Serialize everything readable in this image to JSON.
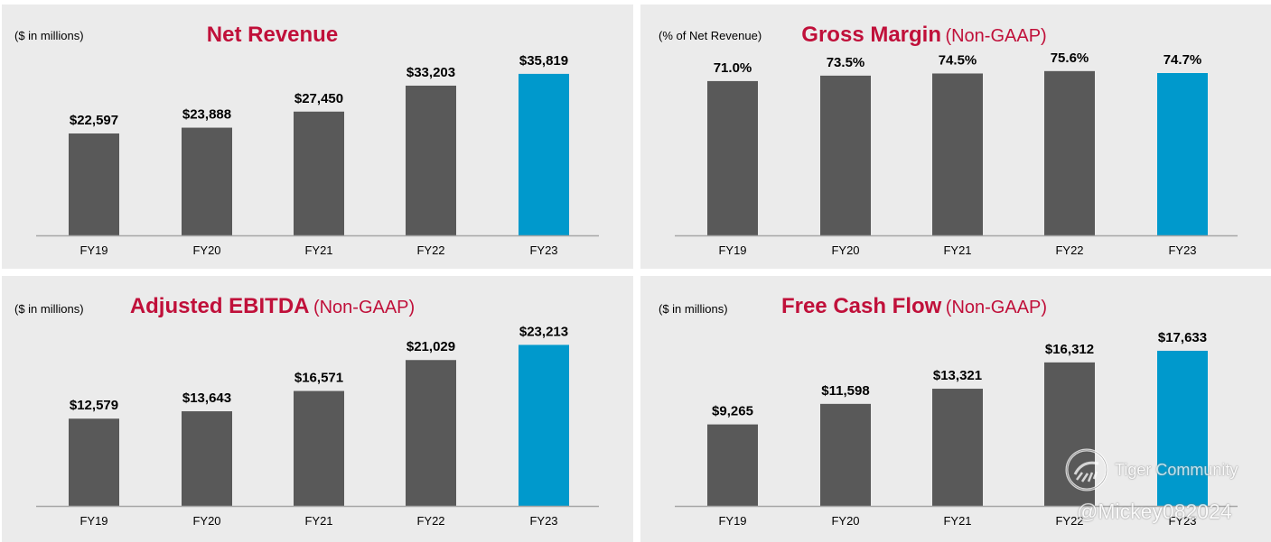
{
  "chart_data": [
    {
      "type": "bar",
      "title": "Net Revenue",
      "subtitle": "",
      "unit_label": "($ in millions)",
      "categories": [
        "FY19",
        "FY20",
        "FY21",
        "FY22",
        "FY23"
      ],
      "values": [
        22597,
        23888,
        27450,
        33203,
        35819
      ],
      "labels": [
        "$22,597",
        "$23,888",
        "$27,450",
        "$33,203",
        "$35,819"
      ],
      "highlight_index": 4,
      "ylim": [
        0,
        40000
      ],
      "grid": false,
      "legend": "none"
    },
    {
      "type": "bar",
      "title": "Gross Margin",
      "subtitle": "(Non-GAAP)",
      "unit_label": "(% of Net Revenue)",
      "categories": [
        "FY19",
        "FY20",
        "FY21",
        "FY22",
        "FY23"
      ],
      "values": [
        71.0,
        73.5,
        74.5,
        75.6,
        74.7
      ],
      "labels": [
        "71.0%",
        "73.5%",
        "74.5%",
        "75.6%",
        "74.7%"
      ],
      "highlight_index": 4,
      "ylim": [
        0,
        83
      ],
      "grid": false,
      "legend": "none"
    },
    {
      "type": "bar",
      "title": "Adjusted EBITDA",
      "subtitle": "(Non-GAAP)",
      "unit_label": "($ in millions)",
      "categories": [
        "FY19",
        "FY20",
        "FY21",
        "FY22",
        "FY23"
      ],
      "values": [
        12579,
        13643,
        16571,
        21029,
        23213
      ],
      "labels": [
        "$12,579",
        "$13,643",
        "$16,571",
        "$21,029",
        "$23,213"
      ],
      "highlight_index": 4,
      "ylim": [
        0,
        26000
      ],
      "grid": false,
      "legend": "none"
    },
    {
      "type": "bar",
      "title": "Free Cash Flow",
      "subtitle": "(Non-GAAP)",
      "unit_label": "($ in millions)",
      "categories": [
        "FY19",
        "FY20",
        "FY21",
        "FY22",
        "FY23"
      ],
      "values": [
        9265,
        11598,
        13321,
        16312,
        17633
      ],
      "labels": [
        "$9,265",
        "$11,598",
        "$13,321",
        "$16,312",
        "$17,633"
      ],
      "highlight_index": 4,
      "ylim": [
        0,
        20500
      ],
      "grid": false,
      "legend": "none"
    }
  ],
  "colors": {
    "bar": "#595959",
    "highlight": "#0099cc",
    "title": "#c0103a",
    "panel_bg": "#ebebeb",
    "axis": "#a6a6a6"
  },
  "watermark": {
    "name": "Tiger Community",
    "handle": "@Mickey082024",
    "icon": "tiger-logo-icon"
  }
}
